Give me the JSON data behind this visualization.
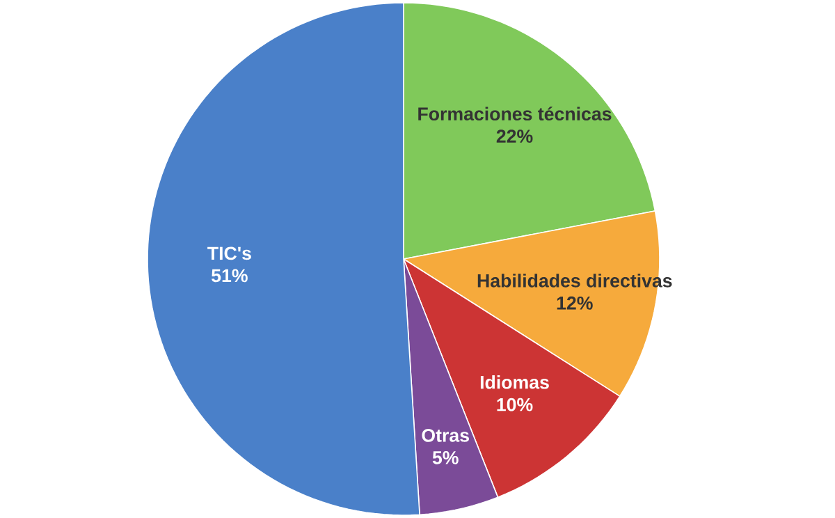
{
  "chart_data": {
    "type": "pie",
    "categories": [
      "Formaciones técnicas",
      "Habilidades directivas",
      "Idiomas",
      "Otras",
      "TIC's"
    ],
    "values": [
      22,
      12,
      10,
      5,
      51
    ],
    "value_labels": [
      "22%",
      "12%",
      "10%",
      "5%",
      "51%"
    ],
    "colors": [
      "#80c95a",
      "#f6aa3c",
      "#cc3434",
      "#7b4b98",
      "#4a80c9"
    ]
  }
}
